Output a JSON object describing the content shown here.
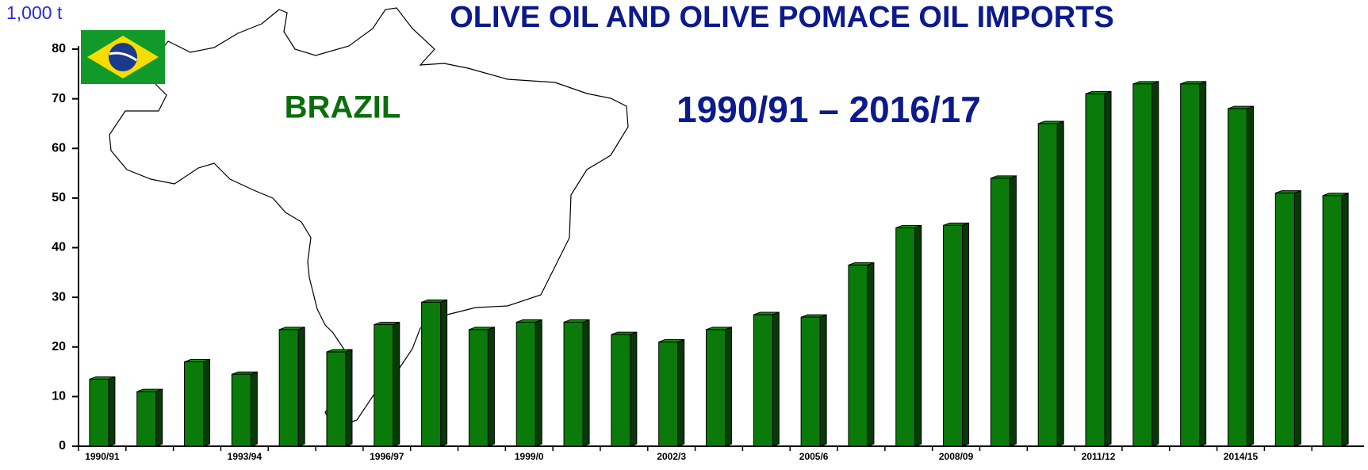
{
  "chart_data": {
    "type": "bar",
    "title": "OLIVE OIL AND OLIVE POMACE OIL IMPORTS",
    "subtitle": "1990/91 – 2016/17",
    "annotation": "BRAZIL",
    "y_label": "1,000 t",
    "categories": [
      "1990/91",
      null,
      null,
      "1993/94",
      null,
      null,
      "1996/97",
      null,
      null,
      "1999/0",
      null,
      null,
      "2002/3",
      null,
      null,
      "2005/6",
      null,
      null,
      "2008/09",
      null,
      null,
      "2011/12",
      null,
      null,
      "2014/15",
      null,
      null
    ],
    "values": [
      13.5,
      11,
      17,
      14.5,
      23.5,
      19,
      24.5,
      29,
      23.5,
      25,
      25,
      22.5,
      21,
      23.5,
      26.5,
      26,
      36.5,
      44,
      44.5,
      54,
      65,
      71,
      73,
      73,
      68,
      51,
      50.5
    ],
    "color": "#0a7a0a",
    "ylim": [
      0,
      80
    ],
    "yticks": [
      0,
      10,
      20,
      30,
      40,
      50,
      60,
      70,
      80
    ],
    "grid": false
  }
}
